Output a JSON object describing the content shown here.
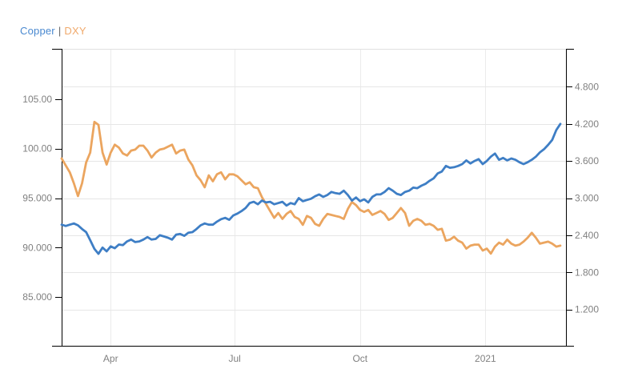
{
  "legend": {
    "copper_label": "Copper",
    "separator": "|",
    "dxy_label": "DXY"
  },
  "colors": {
    "copper_line": "#3E7EC5",
    "dxy_line": "#EBA55F",
    "legend_copper": "#4A89D0",
    "legend_dxy": "#F0A96B",
    "legend_separator": "#666666",
    "axis_text": "#808080",
    "axis_line": "#000000",
    "grid_horizontal": "#E6E6E6",
    "grid_vertical": "#EBEBEB",
    "plot_top_border": "#E0E0E0",
    "background": "#FFFFFF"
  },
  "chart_data": {
    "type": "line",
    "x_start_label": "late Feb 2020",
    "x_end_label": "late Feb 2021",
    "x_total_days": 366,
    "x_ticks": [
      {
        "label": "Apr",
        "day": 36
      },
      {
        "label": "Jul",
        "day": 127
      },
      {
        "label": "Oct",
        "day": 219
      },
      {
        "label": "2021",
        "day": 311
      }
    ],
    "left_axis": {
      "tick_labels": [
        "105.00",
        "100.00",
        "95.000",
        "90.000",
        "85.000"
      ],
      "tick_values": [
        105,
        100,
        95,
        90,
        85
      ],
      "range": [
        80,
        110
      ],
      "gridlines": false
    },
    "right_axis": {
      "tick_labels": [
        "4.800",
        "4.200",
        "3.600",
        "3.000",
        "2.400",
        "1.800",
        "1.200"
      ],
      "tick_values": [
        4.8,
        4.2,
        3.6,
        3.0,
        2.4,
        1.8,
        1.2
      ],
      "range": [
        0.6,
        5.4
      ],
      "gridlines": true
    },
    "grid": {
      "horizontal": "right-axis ticks",
      "vertical": "x ticks"
    },
    "legend_position": "top-left",
    "series": [
      {
        "name": "DXY",
        "axis": "left",
        "color": "#EBA55F",
        "day_step": 3,
        "values": [
          99.0,
          98.3,
          97.6,
          96.5,
          95.2,
          96.5,
          98.6,
          99.6,
          102.7,
          102.4,
          99.6,
          98.4,
          99.6,
          100.4,
          100.1,
          99.5,
          99.3,
          99.8,
          99.9,
          100.3,
          100.3,
          99.8,
          99.1,
          99.6,
          99.9,
          100.0,
          100.2,
          100.4,
          99.5,
          99.8,
          99.9,
          98.9,
          98.3,
          97.3,
          96.8,
          96.1,
          97.3,
          96.7,
          97.4,
          97.6,
          96.9,
          97.4,
          97.4,
          97.2,
          96.8,
          96.4,
          96.6,
          96.1,
          96.0,
          95.1,
          94.4,
          93.7,
          93.0,
          93.5,
          92.9,
          93.4,
          93.7,
          93.1,
          92.9,
          92.3,
          93.2,
          93.0,
          92.4,
          92.2,
          92.9,
          93.4,
          93.3,
          93.2,
          93.1,
          92.9,
          93.9,
          94.6,
          94.3,
          93.8,
          93.6,
          93.8,
          93.3,
          93.5,
          93.7,
          93.4,
          92.8,
          93.0,
          93.5,
          94.0,
          93.5,
          92.2,
          92.7,
          92.9,
          92.7,
          92.3,
          92.4,
          92.2,
          91.8,
          91.9,
          90.7,
          90.8,
          91.1,
          90.7,
          90.5,
          89.9,
          90.2,
          90.3,
          90.3,
          89.7,
          89.9,
          89.4,
          90.1,
          90.5,
          90.3,
          90.8,
          90.4,
          90.2,
          90.3,
          90.6,
          91.0,
          91.5,
          91.0,
          90.4,
          90.5,
          90.6,
          90.4,
          90.1,
          90.2
        ]
      },
      {
        "name": "Copper",
        "axis": "right",
        "color": "#3E7EC5",
        "day_step": 3,
        "values": [
          2.57,
          2.55,
          2.57,
          2.59,
          2.56,
          2.5,
          2.45,
          2.32,
          2.18,
          2.1,
          2.2,
          2.14,
          2.22,
          2.19,
          2.25,
          2.24,
          2.3,
          2.33,
          2.29,
          2.3,
          2.33,
          2.37,
          2.33,
          2.34,
          2.4,
          2.38,
          2.36,
          2.33,
          2.41,
          2.42,
          2.39,
          2.44,
          2.45,
          2.5,
          2.56,
          2.59,
          2.57,
          2.57,
          2.62,
          2.66,
          2.68,
          2.65,
          2.72,
          2.75,
          2.79,
          2.84,
          2.92,
          2.94,
          2.9,
          2.96,
          2.93,
          2.94,
          2.9,
          2.92,
          2.94,
          2.88,
          2.92,
          2.9,
          3.0,
          2.95,
          2.97,
          2.99,
          3.03,
          3.06,
          3.02,
          3.05,
          3.1,
          3.08,
          3.07,
          3.12,
          3.05,
          2.96,
          3.01,
          2.95,
          2.98,
          2.93,
          3.02,
          3.06,
          3.06,
          3.1,
          3.16,
          3.12,
          3.07,
          3.05,
          3.1,
          3.12,
          3.17,
          3.16,
          3.2,
          3.23,
          3.28,
          3.32,
          3.4,
          3.43,
          3.52,
          3.49,
          3.5,
          3.52,
          3.55,
          3.61,
          3.56,
          3.6,
          3.63,
          3.55,
          3.6,
          3.67,
          3.72,
          3.62,
          3.65,
          3.61,
          3.64,
          3.62,
          3.58,
          3.55,
          3.58,
          3.62,
          3.67,
          3.74,
          3.79,
          3.86,
          3.94,
          4.1,
          4.2
        ]
      }
    ]
  }
}
